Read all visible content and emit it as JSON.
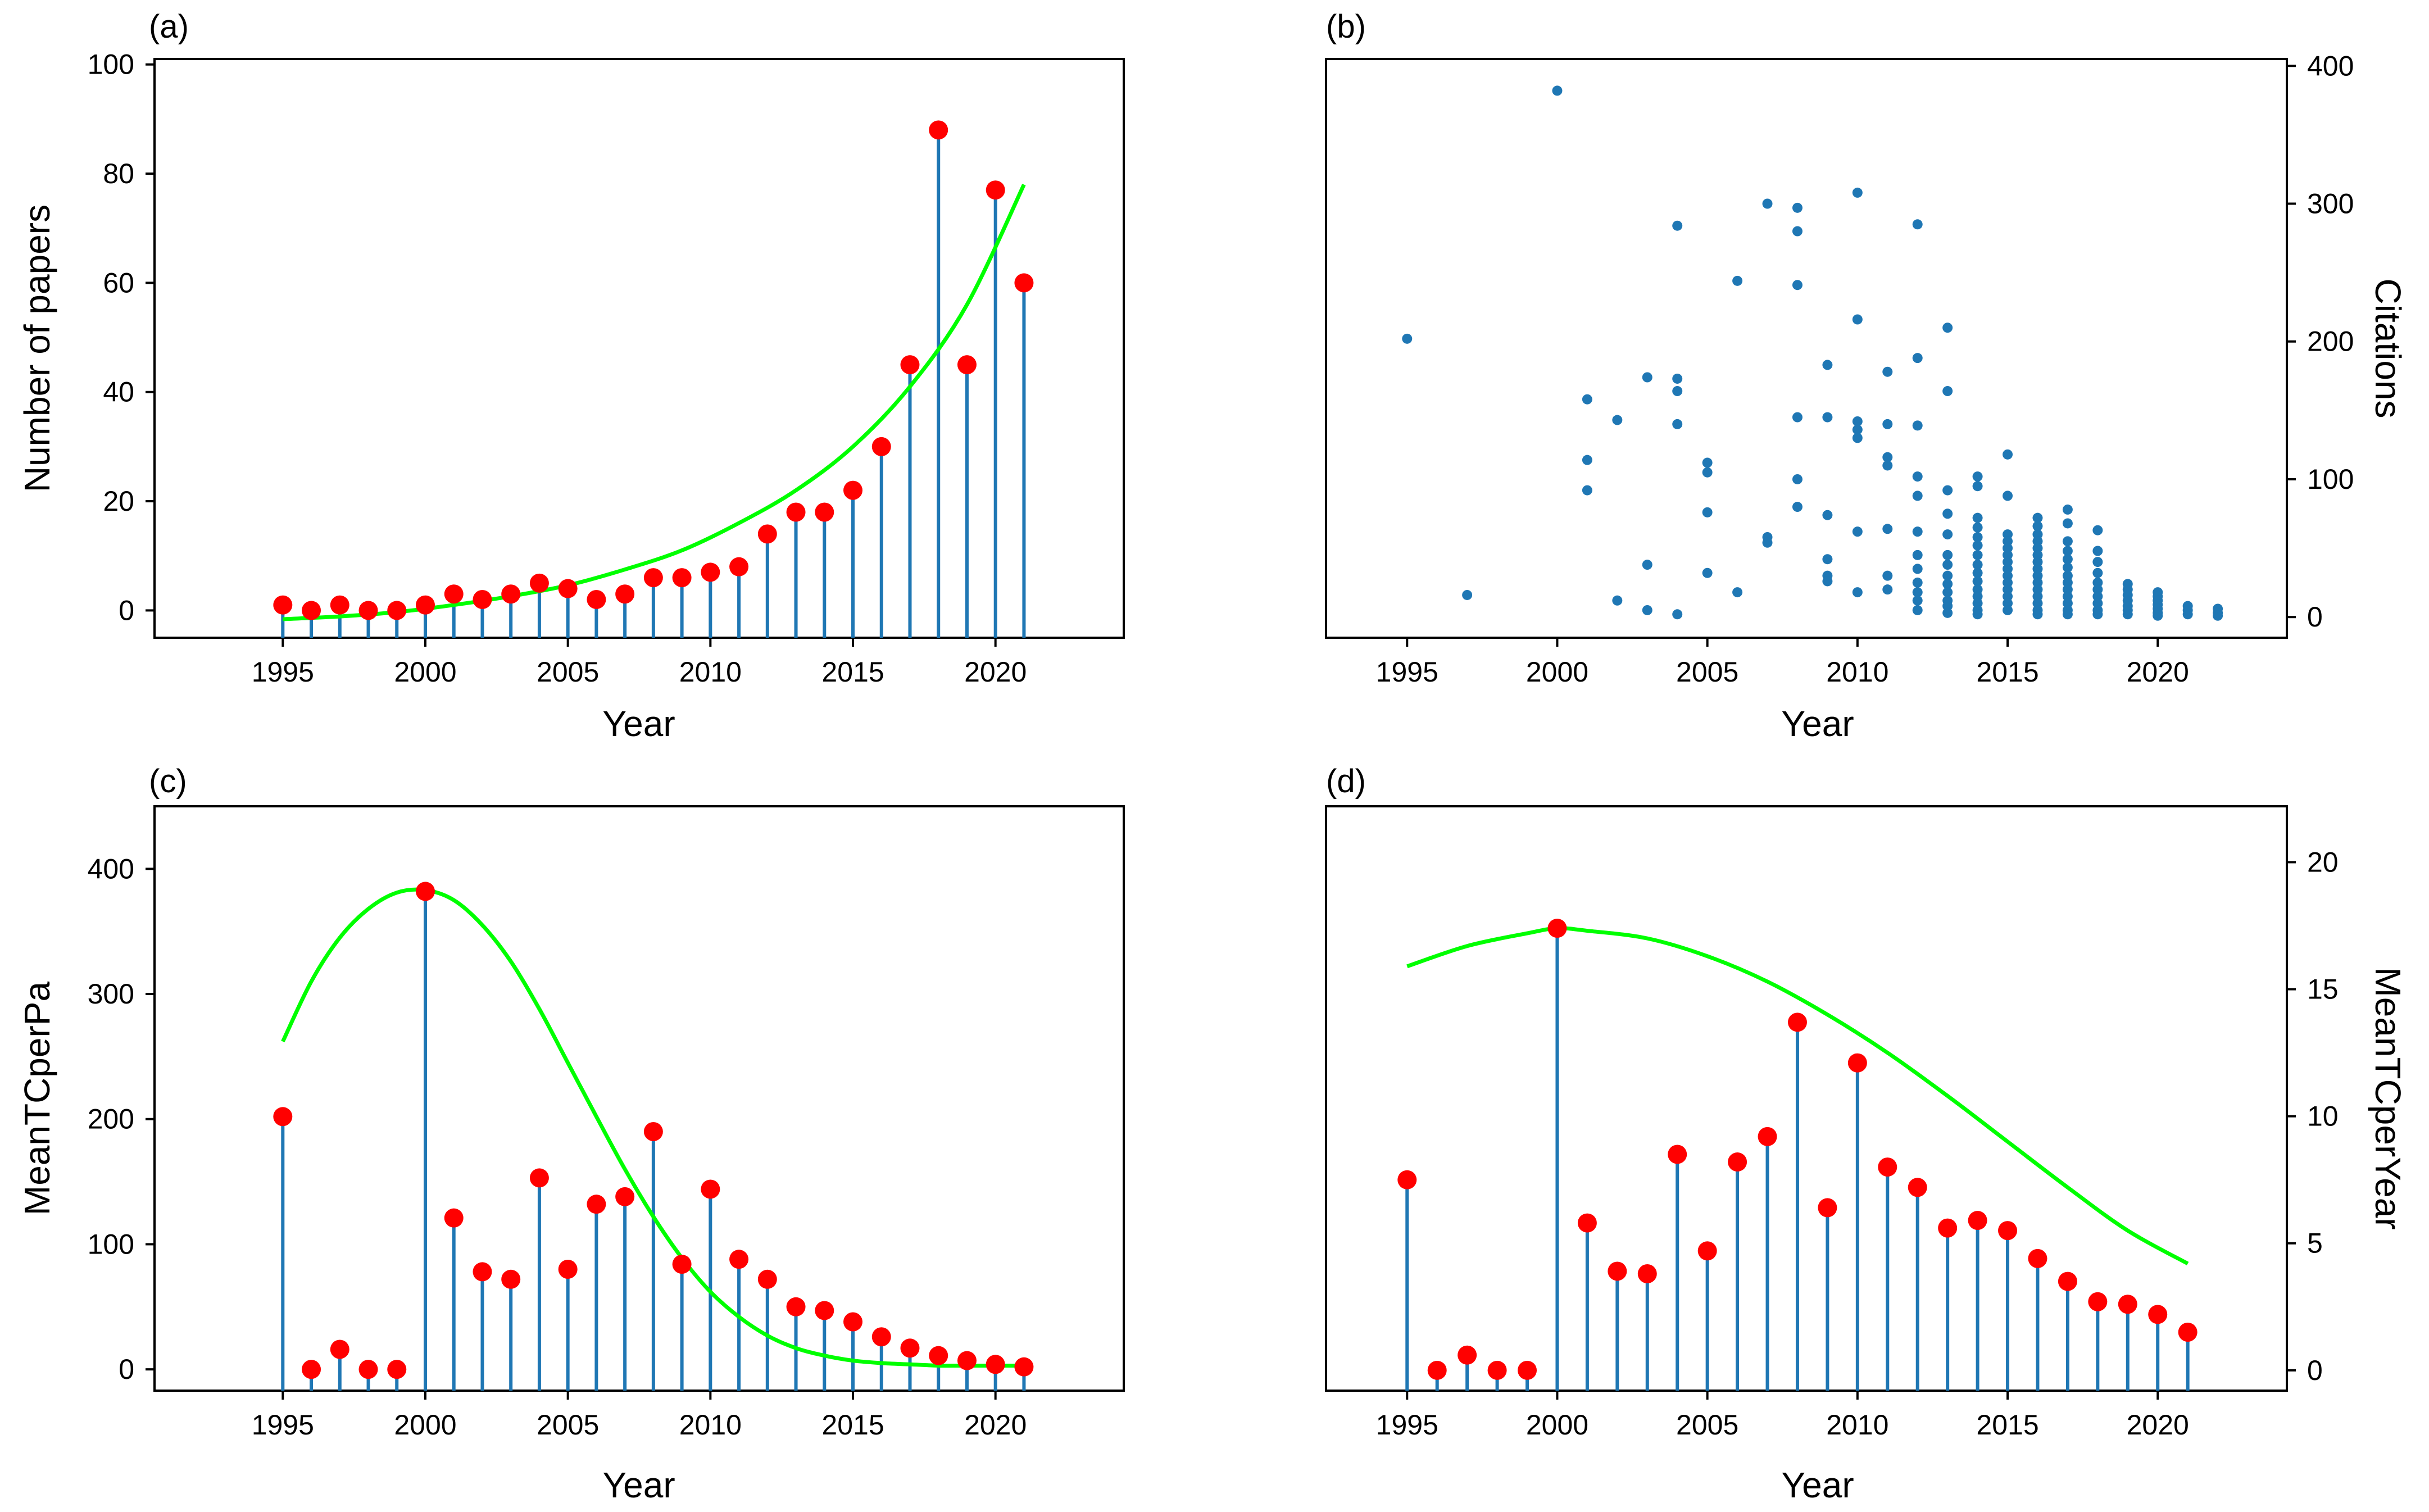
{
  "colors": {
    "stem": "#1f77b4",
    "marker": "#ff0000",
    "fit": "#00ff00",
    "scatter": "#1f77b4",
    "frame": "#000000"
  },
  "chart_data": [
    {
      "id": "a",
      "panel_label": "(a)",
      "type": "stem",
      "xlabel": "Year",
      "ylabel": "Number of papers",
      "y_axis_side": "left",
      "xlim": [
        1990.5,
        2024.5
      ],
      "ylim": [
        -5,
        101
      ],
      "xticks": [
        1995,
        2000,
        2005,
        2010,
        2015,
        2020
      ],
      "yticks": [
        0,
        20,
        40,
        60,
        80,
        100
      ],
      "x": [
        1995,
        1996,
        1997,
        1998,
        1999,
        2000,
        2001,
        2002,
        2003,
        2004,
        2005,
        2006,
        2007,
        2008,
        2009,
        2010,
        2011,
        2012,
        2013,
        2014,
        2015,
        2016,
        2017,
        2018,
        2019,
        2020,
        2021
      ],
      "y": [
        1,
        0,
        1,
        0,
        0,
        1,
        3,
        2,
        3,
        5,
        4,
        2,
        3,
        6,
        6,
        7,
        8,
        14,
        18,
        18,
        22,
        30,
        45,
        88,
        45,
        77,
        60
      ],
      "fit": {
        "x": [
          1995,
          1997,
          1999,
          2001,
          2003,
          2005,
          2007,
          2009,
          2011,
          2013,
          2015,
          2017,
          2019,
          2021
        ],
        "y": [
          -1.6,
          -1.1,
          -0.3,
          1.0,
          2.6,
          4.6,
          7.5,
          11.0,
          16.0,
          22.0,
          30.0,
          41.0,
          56.0,
          78.0
        ]
      }
    },
    {
      "id": "b",
      "panel_label": "(b)",
      "type": "scatter",
      "xlabel": "Year",
      "ylabel": "Citations",
      "y_axis_side": "right",
      "xlim": [
        1992.3,
        2024.3
      ],
      "ylim": [
        -15,
        405
      ],
      "xticks": [
        1995,
        2000,
        2005,
        2010,
        2015,
        2020
      ],
      "yticks": [
        0,
        100,
        200,
        300,
        400
      ],
      "points": [
        [
          1995,
          202
        ],
        [
          1997,
          16
        ],
        [
          2000,
          382
        ],
        [
          2001,
          158
        ],
        [
          2001,
          114
        ],
        [
          2001,
          92
        ],
        [
          2002,
          143
        ],
        [
          2002,
          12
        ],
        [
          2003,
          174
        ],
        [
          2003,
          38
        ],
        [
          2003,
          5
        ],
        [
          2004,
          284
        ],
        [
          2004,
          173
        ],
        [
          2004,
          164
        ],
        [
          2004,
          140
        ],
        [
          2004,
          2
        ],
        [
          2005,
          112
        ],
        [
          2005,
          105
        ],
        [
          2005,
          76
        ],
        [
          2005,
          32
        ],
        [
          2006,
          244
        ],
        [
          2006,
          18
        ],
        [
          2007,
          300
        ],
        [
          2007,
          58
        ],
        [
          2007,
          54
        ],
        [
          2008,
          297
        ],
        [
          2008,
          280
        ],
        [
          2008,
          241
        ],
        [
          2008,
          145
        ],
        [
          2008,
          100
        ],
        [
          2008,
          80
        ],
        [
          2009,
          183
        ],
        [
          2009,
          145
        ],
        [
          2009,
          74
        ],
        [
          2009,
          42
        ],
        [
          2009,
          30
        ],
        [
          2009,
          26
        ],
        [
          2010,
          308
        ],
        [
          2010,
          216
        ],
        [
          2010,
          142
        ],
        [
          2010,
          136
        ],
        [
          2010,
          130
        ],
        [
          2010,
          62
        ],
        [
          2010,
          18
        ],
        [
          2011,
          178
        ],
        [
          2011,
          140
        ],
        [
          2011,
          116
        ],
        [
          2011,
          110
        ],
        [
          2011,
          64
        ],
        [
          2011,
          30
        ],
        [
          2011,
          20
        ],
        [
          2012,
          285
        ],
        [
          2012,
          188
        ],
        [
          2012,
          139
        ],
        [
          2012,
          102
        ],
        [
          2012,
          88
        ],
        [
          2012,
          62
        ],
        [
          2012,
          45
        ],
        [
          2012,
          35
        ],
        [
          2012,
          25
        ],
        [
          2012,
          18
        ],
        [
          2012,
          12
        ],
        [
          2012,
          5
        ],
        [
          2013,
          210
        ],
        [
          2013,
          164
        ],
        [
          2013,
          92
        ],
        [
          2013,
          75
        ],
        [
          2013,
          60
        ],
        [
          2013,
          45
        ],
        [
          2013,
          38
        ],
        [
          2013,
          30
        ],
        [
          2013,
          24
        ],
        [
          2013,
          18
        ],
        [
          2013,
          12
        ],
        [
          2013,
          8
        ],
        [
          2013,
          3
        ],
        [
          2014,
          102
        ],
        [
          2014,
          95
        ],
        [
          2014,
          72
        ],
        [
          2014,
          65
        ],
        [
          2014,
          58
        ],
        [
          2014,
          52
        ],
        [
          2014,
          45
        ],
        [
          2014,
          38
        ],
        [
          2014,
          32
        ],
        [
          2014,
          26
        ],
        [
          2014,
          20
        ],
        [
          2014,
          15
        ],
        [
          2014,
          10
        ],
        [
          2014,
          5
        ],
        [
          2014,
          2
        ],
        [
          2015,
          118
        ],
        [
          2015,
          88
        ],
        [
          2015,
          60
        ],
        [
          2015,
          55
        ],
        [
          2015,
          50
        ],
        [
          2015,
          45
        ],
        [
          2015,
          40
        ],
        [
          2015,
          35
        ],
        [
          2015,
          30
        ],
        [
          2015,
          25
        ],
        [
          2015,
          20
        ],
        [
          2015,
          15
        ],
        [
          2015,
          10
        ],
        [
          2015,
          5
        ],
        [
          2016,
          72
        ],
        [
          2016,
          66
        ],
        [
          2016,
          60
        ],
        [
          2016,
          55
        ],
        [
          2016,
          50
        ],
        [
          2016,
          45
        ],
        [
          2016,
          40
        ],
        [
          2016,
          35
        ],
        [
          2016,
          30
        ],
        [
          2016,
          25
        ],
        [
          2016,
          20
        ],
        [
          2016,
          15
        ],
        [
          2016,
          10
        ],
        [
          2016,
          5
        ],
        [
          2016,
          2
        ],
        [
          2017,
          78
        ],
        [
          2017,
          68
        ],
        [
          2017,
          55
        ],
        [
          2017,
          48
        ],
        [
          2017,
          42
        ],
        [
          2017,
          36
        ],
        [
          2017,
          30
        ],
        [
          2017,
          25
        ],
        [
          2017,
          20
        ],
        [
          2017,
          15
        ],
        [
          2017,
          10
        ],
        [
          2017,
          5
        ],
        [
          2017,
          2
        ],
        [
          2018,
          63
        ],
        [
          2018,
          48
        ],
        [
          2018,
          40
        ],
        [
          2018,
          32
        ],
        [
          2018,
          25
        ],
        [
          2018,
          20
        ],
        [
          2018,
          15
        ],
        [
          2018,
          10
        ],
        [
          2018,
          5
        ],
        [
          2018,
          2
        ],
        [
          2019,
          24
        ],
        [
          2019,
          20
        ],
        [
          2019,
          16
        ],
        [
          2019,
          12
        ],
        [
          2019,
          8
        ],
        [
          2019,
          5
        ],
        [
          2019,
          2
        ],
        [
          2020,
          18
        ],
        [
          2020,
          15
        ],
        [
          2020,
          12
        ],
        [
          2020,
          9
        ],
        [
          2020,
          6
        ],
        [
          2020,
          3
        ],
        [
          2020,
          1
        ],
        [
          2021,
          8
        ],
        [
          2021,
          5
        ],
        [
          2021,
          2
        ],
        [
          2022,
          6
        ],
        [
          2022,
          3
        ],
        [
          2022,
          1
        ]
      ]
    },
    {
      "id": "c",
      "panel_label": "(c)",
      "type": "stem",
      "xlabel": "Year",
      "ylabel": "MeanTCperPa",
      "y_axis_side": "left",
      "xlim": [
        1990.5,
        2024.5
      ],
      "ylim": [
        -17,
        450
      ],
      "xticks": [
        1995,
        2000,
        2005,
        2010,
        2015,
        2020
      ],
      "yticks": [
        0,
        100,
        200,
        300,
        400
      ],
      "x": [
        1995,
        1996,
        1997,
        1998,
        1999,
        2000,
        2001,
        2002,
        2003,
        2004,
        2005,
        2006,
        2007,
        2008,
        2009,
        2010,
        2011,
        2012,
        2013,
        2014,
        2015,
        2016,
        2017,
        2018,
        2019,
        2020,
        2021
      ],
      "y": [
        202,
        0,
        16,
        0,
        0,
        382,
        121,
        78,
        72,
        153,
        80,
        132,
        138,
        190,
        84,
        144,
        88,
        72,
        50,
        47,
        38,
        26,
        17,
        11,
        7,
        4,
        2
      ],
      "fit": {
        "x": [
          1995,
          1996,
          1997,
          1998,
          1999,
          2000,
          2001,
          2002,
          2003,
          2004,
          2005,
          2006,
          2007,
          2008,
          2009,
          2010,
          2011,
          2012,
          2013,
          2014,
          2015,
          2016,
          2017,
          2018,
          2019,
          2020,
          2021
        ],
        "y": [
          262,
          310,
          345,
          368,
          381,
          383,
          375,
          355,
          326,
          288,
          245,
          202,
          160,
          122,
          89,
          62,
          42,
          27,
          17,
          11,
          7,
          5,
          4,
          3,
          3,
          3,
          3
        ]
      }
    },
    {
      "id": "d",
      "panel_label": "(d)",
      "type": "stem",
      "xlabel": "Year",
      "ylabel": "MeanTCperYear",
      "y_axis_side": "right",
      "xlim": [
        1992.3,
        2024.3
      ],
      "ylim": [
        -0.8,
        22.2
      ],
      "xticks": [
        1995,
        2000,
        2005,
        2010,
        2015,
        2020
      ],
      "yticks": [
        0,
        5,
        10,
        15,
        20
      ],
      "x": [
        1995,
        1996,
        1997,
        1998,
        1999,
        2000,
        2001,
        2002,
        2003,
        2004,
        2005,
        2006,
        2007,
        2008,
        2009,
        2010,
        2011,
        2012,
        2013,
        2014,
        2015,
        2016,
        2017,
        2018,
        2019,
        2020,
        2021
      ],
      "y": [
        7.5,
        0,
        0.6,
        0,
        0,
        17.4,
        5.8,
        3.9,
        3.8,
        8.5,
        4.7,
        8.2,
        9.2,
        13.7,
        6.4,
        12.1,
        8.0,
        7.2,
        5.6,
        5.9,
        5.5,
        4.4,
        3.5,
        2.7,
        2.6,
        2.2,
        1.5
      ],
      "fit": {
        "x": [
          1995,
          1997,
          1999,
          2000,
          2001,
          2003,
          2005,
          2007,
          2009,
          2011,
          2013,
          2015,
          2017,
          2019,
          2021
        ],
        "y": [
          15.9,
          16.7,
          17.2,
          17.4,
          17.3,
          17.0,
          16.3,
          15.3,
          14.0,
          12.5,
          10.8,
          9.0,
          7.2,
          5.5,
          4.2
        ]
      }
    }
  ]
}
